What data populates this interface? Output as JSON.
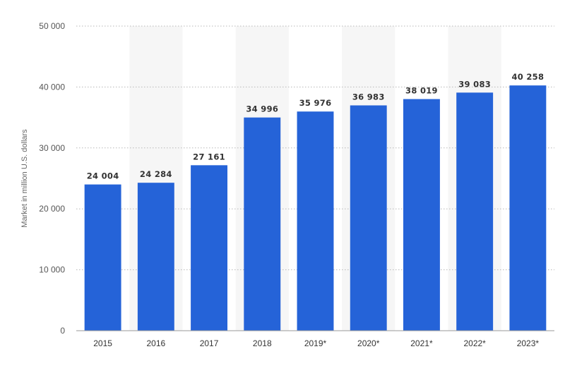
{
  "chart_data": {
    "type": "bar",
    "categories": [
      "2015",
      "2016",
      "2017",
      "2018",
      "2019*",
      "2020*",
      "2021*",
      "2022*",
      "2023*"
    ],
    "values": [
      24004,
      24284,
      27161,
      34996,
      35976,
      36983,
      38019,
      39083,
      40258
    ],
    "value_labels": [
      "24 004",
      "24 284",
      "27 161",
      "34 996",
      "35 976",
      "36 983",
      "38 019",
      "39 083",
      "40 258"
    ],
    "ylabel": "Market in million U.S. dollars",
    "ylim": [
      0,
      50000
    ],
    "yticks": [
      0,
      10000,
      20000,
      30000,
      40000,
      50000
    ],
    "ytick_labels": [
      "0",
      "10 000",
      "20 000",
      "30 000",
      "40 000",
      "50 000"
    ],
    "grid": true,
    "bar_color": "#2563d8",
    "band_color": "#f6f6f6"
  }
}
